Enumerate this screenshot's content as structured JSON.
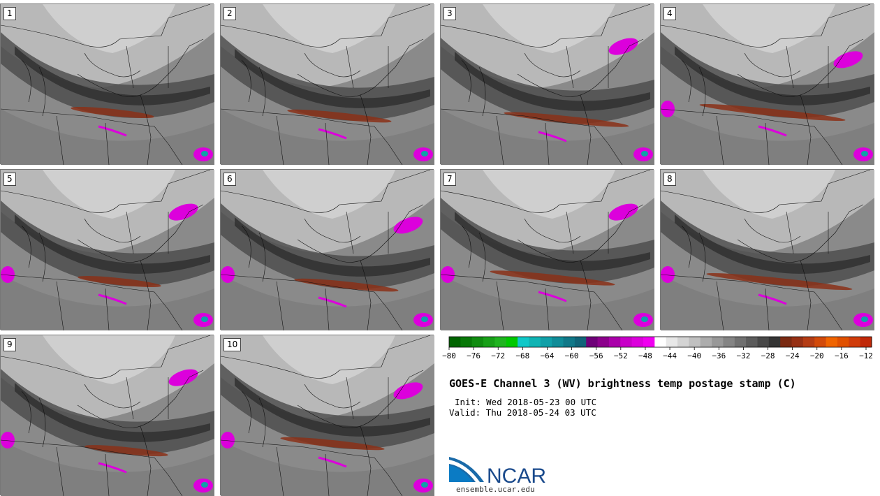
{
  "panels": [
    {
      "label": "1",
      "variant": 0
    },
    {
      "label": "2",
      "variant": 1
    },
    {
      "label": "3",
      "variant": 2
    },
    {
      "label": "4",
      "variant": 3
    },
    {
      "label": "5",
      "variant": 4
    },
    {
      "label": "6",
      "variant": 5
    },
    {
      "label": "7",
      "variant": 6
    },
    {
      "label": "8",
      "variant": 7
    },
    {
      "label": "9",
      "variant": 8
    },
    {
      "label": "10",
      "variant": 9
    }
  ],
  "colorbar": {
    "ticks": [
      "-80",
      "-76",
      "-72",
      "-68",
      "-64",
      "-60",
      "-56",
      "-52",
      "-48",
      "-44",
      "-40",
      "-36",
      "-32",
      "-28",
      "-24",
      "-20",
      "-16",
      "-12"
    ],
    "colors": [
      "#006400",
      "#087808",
      "#108c10",
      "#18a018",
      "#20b420",
      "#00c800",
      "#10c8c8",
      "#10b4b4",
      "#10a0a8",
      "#108c98",
      "#107888",
      "#106478",
      "#6e0078",
      "#8c008c",
      "#aa00aa",
      "#c800c8",
      "#dc00dc",
      "#f000f0",
      "#ffffff",
      "#e8e8e8",
      "#d4d4d4",
      "#c0c0c0",
      "#acacac",
      "#989898",
      "#848484",
      "#707070",
      "#5c5c5c",
      "#484848",
      "#343434",
      "#7a2a12",
      "#963014",
      "#b43c14",
      "#d24a0a",
      "#f06400",
      "#e05000",
      "#d03c0a",
      "#c02808"
    ]
  },
  "title": "GOES-E Channel 3 (WV) brightness temp postage stamp (C)",
  "init": "Init: Wed 2018-05-23 00 UTC",
  "valid": "Valid: Thu 2018-05-24 03 UTC",
  "logo": {
    "text": "NCAR",
    "site": "ensemble.ucar.edu"
  }
}
